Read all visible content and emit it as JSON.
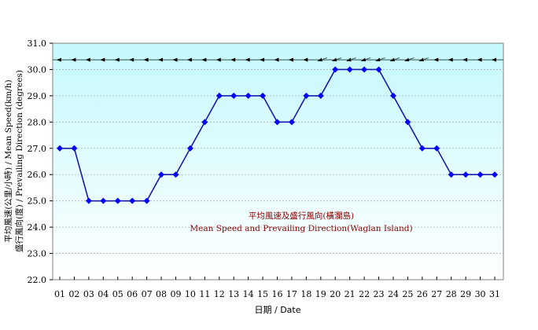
{
  "chart_data": {
    "type": "line",
    "title": "平均風速及盛行風向(橫瀾島) / Mean Speed and Prevailing Direction(Waglan Island)",
    "annotation_zh": "平均風速及盛行風向(橫瀾島)",
    "annotation_en": "Mean Speed and Prevailing Direction(Waglan Island)",
    "xlabel": "日期 / Date",
    "ylabel_line1": "平均風速(公里/小時) / Mean Speed(km/h)",
    "ylabel_line2": "盛行風向(度) / Prevailing Direction (degrees)",
    "ylim": [
      22.0,
      31.0
    ],
    "yticks": [
      "31.0",
      "30.0",
      "29.0",
      "28.0",
      "27.0",
      "26.0",
      "25.0",
      "24.0",
      "23.0",
      "22.0"
    ],
    "categories": [
      "01",
      "02",
      "03",
      "04",
      "05",
      "06",
      "07",
      "08",
      "09",
      "10",
      "11",
      "12",
      "13",
      "14",
      "15",
      "16",
      "17",
      "18",
      "19",
      "20",
      "21",
      "22",
      "23",
      "24",
      "25",
      "26",
      "27",
      "28",
      "29",
      "30",
      "31"
    ],
    "series": [
      {
        "name": "Mean Speed (km/h)",
        "color": "#0000ff",
        "values": [
          27,
          27,
          25,
          25,
          25,
          25,
          25,
          26,
          26,
          27,
          28,
          29,
          29,
          29,
          29,
          28,
          28,
          29,
          29,
          30,
          30,
          30,
          30,
          29,
          28,
          27,
          27,
          26,
          26,
          26,
          26
        ]
      }
    ],
    "prevailing_direction": {
      "row_value": 30.37,
      "arrow_color": "#000000",
      "directions": [
        "E",
        "E",
        "E",
        "E",
        "E",
        "E",
        "E",
        "E",
        "E",
        "E",
        "E",
        "E",
        "E",
        "E",
        "E",
        "E",
        "E",
        "E",
        "ENE",
        "ENE",
        "ENE",
        "ENE",
        "ENE",
        "ENE",
        "ENE",
        "ENE",
        "E",
        "E",
        "E",
        "E",
        "E"
      ]
    },
    "grid": true,
    "background_gradient": [
      "#c4f9fd",
      "#ffffff"
    ]
  }
}
